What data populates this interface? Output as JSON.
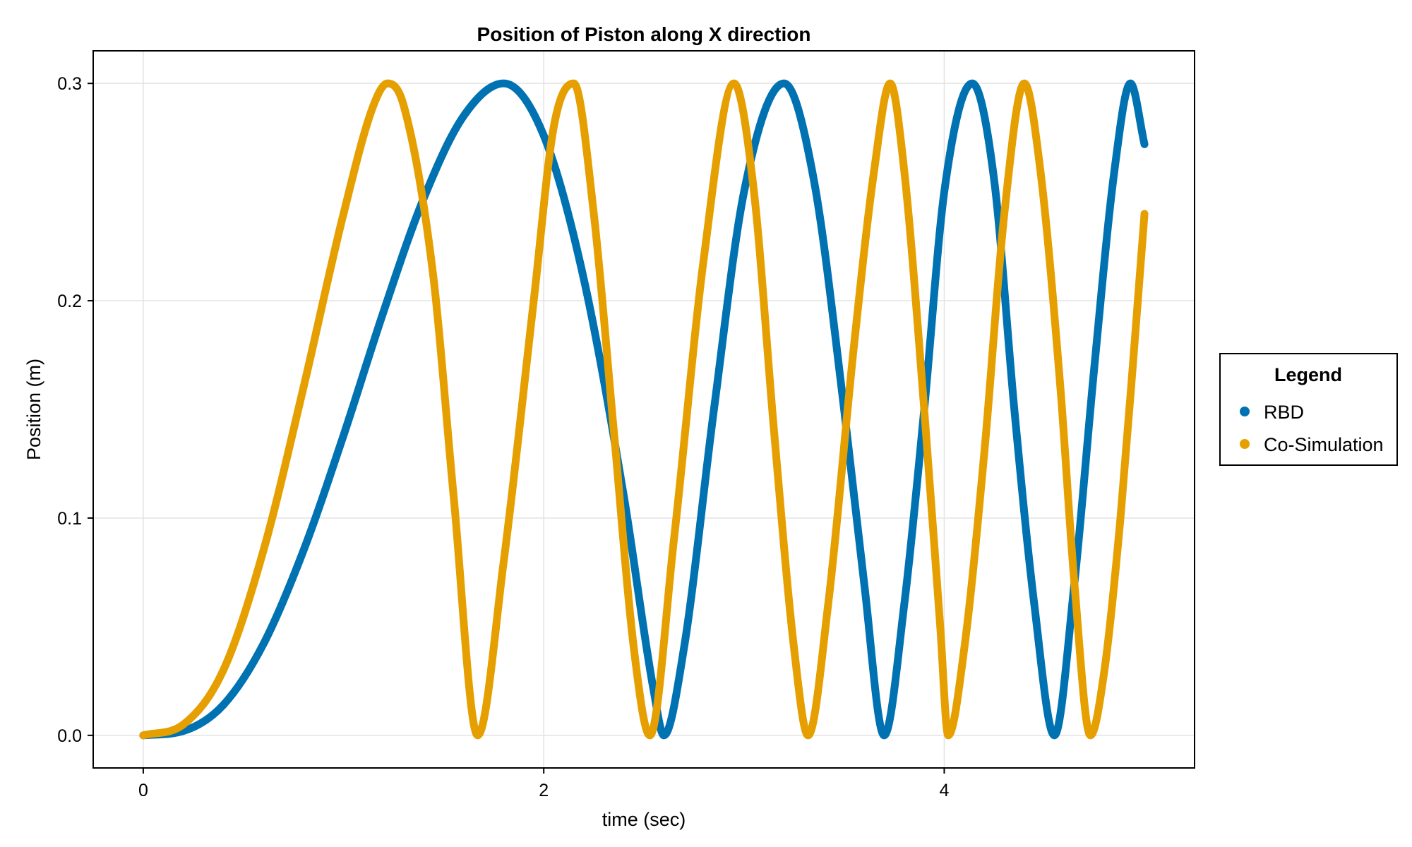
{
  "chart_data": {
    "type": "scatter",
    "title": "Position of Piston along X direction",
    "xlabel": "time (sec)",
    "ylabel": "Position (m)",
    "xlim": [
      -0.25,
      5.25
    ],
    "ylim": [
      -0.015,
      0.315
    ],
    "xticks": [
      0,
      2,
      4
    ],
    "xtick_labels": [
      "0",
      "2",
      "4"
    ],
    "yticks": [
      0.0,
      0.1,
      0.2,
      0.3
    ],
    "ytick_labels": [
      "0.0",
      "0.1",
      "0.2",
      "0.3"
    ],
    "grid": true,
    "legend": {
      "title": "Legend",
      "position": "right"
    },
    "series": [
      {
        "name": "RBD",
        "color": "#0072b2",
        "points": [
          [
            0.0,
            0.0
          ],
          [
            0.2,
            0.002
          ],
          [
            0.4,
            0.014
          ],
          [
            0.6,
            0.042
          ],
          [
            0.8,
            0.085
          ],
          [
            1.0,
            0.138
          ],
          [
            1.2,
            0.195
          ],
          [
            1.4,
            0.247
          ],
          [
            1.6,
            0.285
          ],
          [
            1.8,
            0.3
          ],
          [
            2.0,
            0.276
          ],
          [
            2.2,
            0.21
          ],
          [
            2.4,
            0.11
          ],
          [
            2.55,
            0.02
          ],
          [
            2.6,
            0.0
          ],
          [
            2.7,
            0.04
          ],
          [
            2.85,
            0.15
          ],
          [
            3.0,
            0.25
          ],
          [
            3.2,
            0.3
          ],
          [
            3.35,
            0.255
          ],
          [
            3.5,
            0.15
          ],
          [
            3.6,
            0.07
          ],
          [
            3.7,
            0.0
          ],
          [
            3.8,
            0.06
          ],
          [
            3.9,
            0.15
          ],
          [
            4.0,
            0.25
          ],
          [
            4.14,
            0.3
          ],
          [
            4.25,
            0.255
          ],
          [
            4.35,
            0.15
          ],
          [
            4.45,
            0.06
          ],
          [
            4.55,
            0.0
          ],
          [
            4.65,
            0.07
          ],
          [
            4.75,
            0.17
          ],
          [
            4.85,
            0.26
          ],
          [
            4.93,
            0.3
          ],
          [
            5.0,
            0.272
          ]
        ]
      },
      {
        "name": "Co-Simulation",
        "color": "#e69f00",
        "points": [
          [
            0.0,
            0.0
          ],
          [
            0.2,
            0.005
          ],
          [
            0.4,
            0.03
          ],
          [
            0.6,
            0.085
          ],
          [
            0.8,
            0.16
          ],
          [
            1.0,
            0.24
          ],
          [
            1.15,
            0.29
          ],
          [
            1.22,
            0.3
          ],
          [
            1.3,
            0.29
          ],
          [
            1.45,
            0.21
          ],
          [
            1.55,
            0.11
          ],
          [
            1.67,
            0.0
          ],
          [
            1.8,
            0.08
          ],
          [
            1.95,
            0.2
          ],
          [
            2.05,
            0.28
          ],
          [
            2.15,
            0.3
          ],
          [
            2.25,
            0.24
          ],
          [
            2.35,
            0.14
          ],
          [
            2.45,
            0.04
          ],
          [
            2.53,
            0.0
          ],
          [
            2.65,
            0.09
          ],
          [
            2.8,
            0.22
          ],
          [
            2.95,
            0.3
          ],
          [
            3.05,
            0.25
          ],
          [
            3.15,
            0.14
          ],
          [
            3.25,
            0.04
          ],
          [
            3.32,
            0.0
          ],
          [
            3.42,
            0.06
          ],
          [
            3.55,
            0.18
          ],
          [
            3.65,
            0.26
          ],
          [
            3.73,
            0.3
          ],
          [
            3.8,
            0.26
          ],
          [
            3.9,
            0.15
          ],
          [
            3.98,
            0.05
          ],
          [
            4.02,
            0.0
          ],
          [
            4.1,
            0.04
          ],
          [
            4.2,
            0.13
          ],
          [
            4.3,
            0.24
          ],
          [
            4.4,
            0.3
          ],
          [
            4.48,
            0.26
          ],
          [
            4.58,
            0.16
          ],
          [
            4.65,
            0.07
          ],
          [
            4.73,
            0.0
          ],
          [
            4.8,
            0.03
          ],
          [
            4.88,
            0.1
          ],
          [
            4.95,
            0.18
          ],
          [
            5.0,
            0.24
          ]
        ]
      }
    ]
  }
}
